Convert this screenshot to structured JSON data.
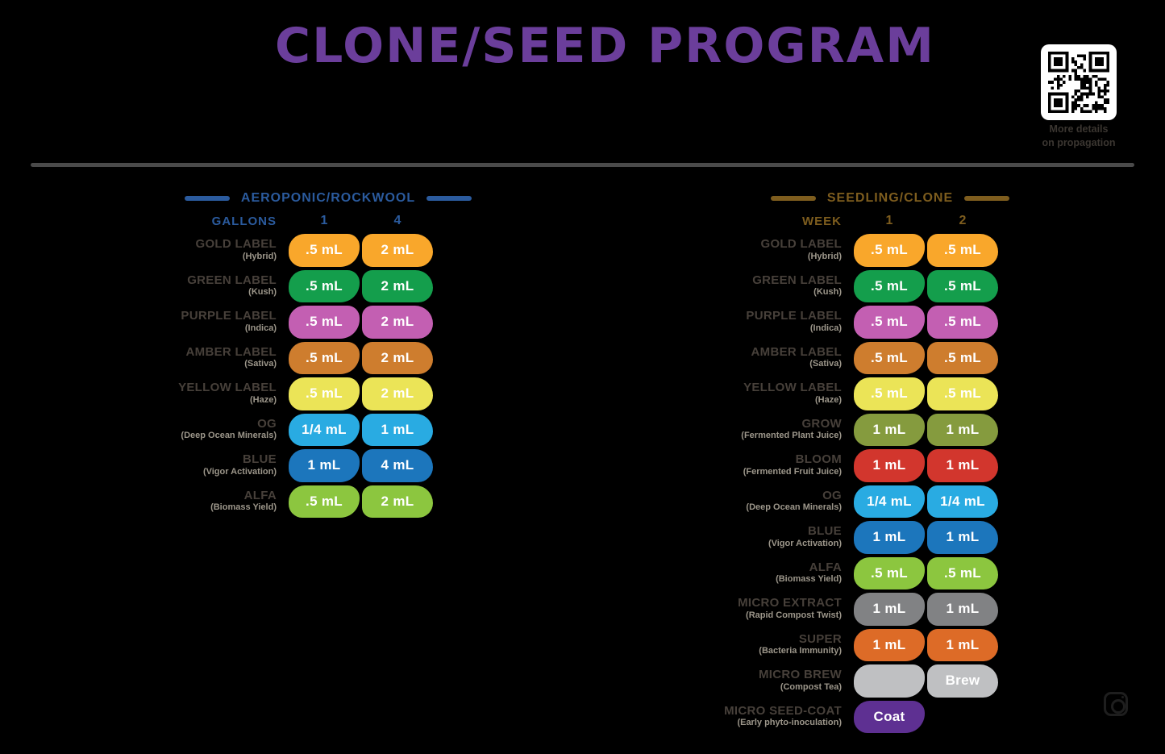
{
  "page_title": "CLONE/SEED PROGRAM",
  "title_color": "#6B3E9B",
  "divider_color": "#4A4A4A",
  "qr": {
    "icon": "qr-code",
    "caption_line1": "More details",
    "caption_line2": "on propagation"
  },
  "footer_icon": "instagram-icon",
  "chart_data": [
    {
      "type": "table",
      "header": "AEROPONIC/ROCKWOOL",
      "unit_label": "GALLONS",
      "columns": [
        "1",
        "4"
      ],
      "accent": "#2B5B9E",
      "rows": [
        {
          "name": "GOLD LABEL",
          "sub": "(Hybrid)",
          "color": "#F9A72B",
          "values": [
            ".5 mL",
            "2 mL"
          ]
        },
        {
          "name": "GREEN LABEL",
          "sub": "(Kush)",
          "color": "#149E4C",
          "values": [
            ".5 mL",
            "2 mL"
          ]
        },
        {
          "name": "PURPLE LABEL",
          "sub": "(Indica)",
          "color": "#C35FB2",
          "values": [
            ".5 mL",
            "2 mL"
          ]
        },
        {
          "name": "AMBER LABEL",
          "sub": "(Sativa)",
          "color": "#CE7D2E",
          "values": [
            ".5 mL",
            "2 mL"
          ]
        },
        {
          "name": "YELLOW LABEL",
          "sub": "(Haze)",
          "color": "#EBE457",
          "values": [
            ".5 mL",
            "2 mL"
          ]
        },
        {
          "name": "OG",
          "sub": "(Deep Ocean Minerals)",
          "color": "#29ABE2",
          "values": [
            "1/4 mL",
            "1 mL"
          ]
        },
        {
          "name": "BLUE",
          "sub": "(Vigor Activation)",
          "color": "#1C76BC",
          "values": [
            "1 mL",
            "4 mL"
          ]
        },
        {
          "name": "ALFA",
          "sub": "(Biomass Yield)",
          "color": "#8CC63F",
          "values": [
            ".5 mL",
            "2 mL"
          ]
        }
      ]
    },
    {
      "type": "table",
      "header": "SEEDLING/CLONE",
      "unit_label": "WEEK",
      "columns": [
        "1",
        "2"
      ],
      "accent": "#7E5D1E",
      "rows": [
        {
          "name": "GOLD LABEL",
          "sub": "(Hybrid)",
          "color": "#F9A72B",
          "values": [
            ".5 mL",
            ".5 mL"
          ]
        },
        {
          "name": "GREEN LABEL",
          "sub": "(Kush)",
          "color": "#149E4C",
          "values": [
            ".5 mL",
            ".5 mL"
          ]
        },
        {
          "name": "PURPLE LABEL",
          "sub": "(Indica)",
          "color": "#C35FB2",
          "values": [
            ".5 mL",
            ".5 mL"
          ]
        },
        {
          "name": "AMBER LABEL",
          "sub": "(Sativa)",
          "color": "#CE7D2E",
          "values": [
            ".5 mL",
            ".5 mL"
          ]
        },
        {
          "name": "YELLOW LABEL",
          "sub": "(Haze)",
          "color": "#EBE457",
          "values": [
            ".5 mL",
            ".5 mL"
          ]
        },
        {
          "name": "GROW",
          "sub": "(Fermented Plant Juice)",
          "color": "#859B3E",
          "values": [
            "1 mL",
            "1 mL"
          ]
        },
        {
          "name": "BLOOM",
          "sub": "(Fermented Fruit Juice)",
          "color": "#D2362D",
          "values": [
            "1 mL",
            "1 mL"
          ]
        },
        {
          "name": "OG",
          "sub": "(Deep Ocean Minerals)",
          "color": "#29ABE2",
          "values": [
            "1/4 mL",
            "1/4 mL"
          ]
        },
        {
          "name": "BLUE",
          "sub": "(Vigor Activation)",
          "color": "#1C76BC",
          "values": [
            "1 mL",
            "1 mL"
          ]
        },
        {
          "name": "ALFA",
          "sub": "(Biomass Yield)",
          "color": "#8CC63F",
          "values": [
            ".5 mL",
            ".5 mL"
          ]
        },
        {
          "name": "MICRO EXTRACT",
          "sub": "(Rapid Compost Twist)",
          "color": "#818284",
          "values": [
            "1 mL",
            "1 mL"
          ]
        },
        {
          "name": "SUPER",
          "sub": "(Bacteria Immunity)",
          "color": "#DD6B27",
          "values": [
            "1 mL",
            "1 mL"
          ]
        },
        {
          "name": "MICRO BREW",
          "sub": "(Compost Tea)",
          "color": "#BFC0C2",
          "values": [
            "",
            "Brew"
          ]
        },
        {
          "name": "MICRO SEED-COAT",
          "sub": "(Early phyto-inoculation)",
          "color": "#5E3092",
          "values": [
            "Coat",
            null
          ]
        }
      ]
    }
  ]
}
